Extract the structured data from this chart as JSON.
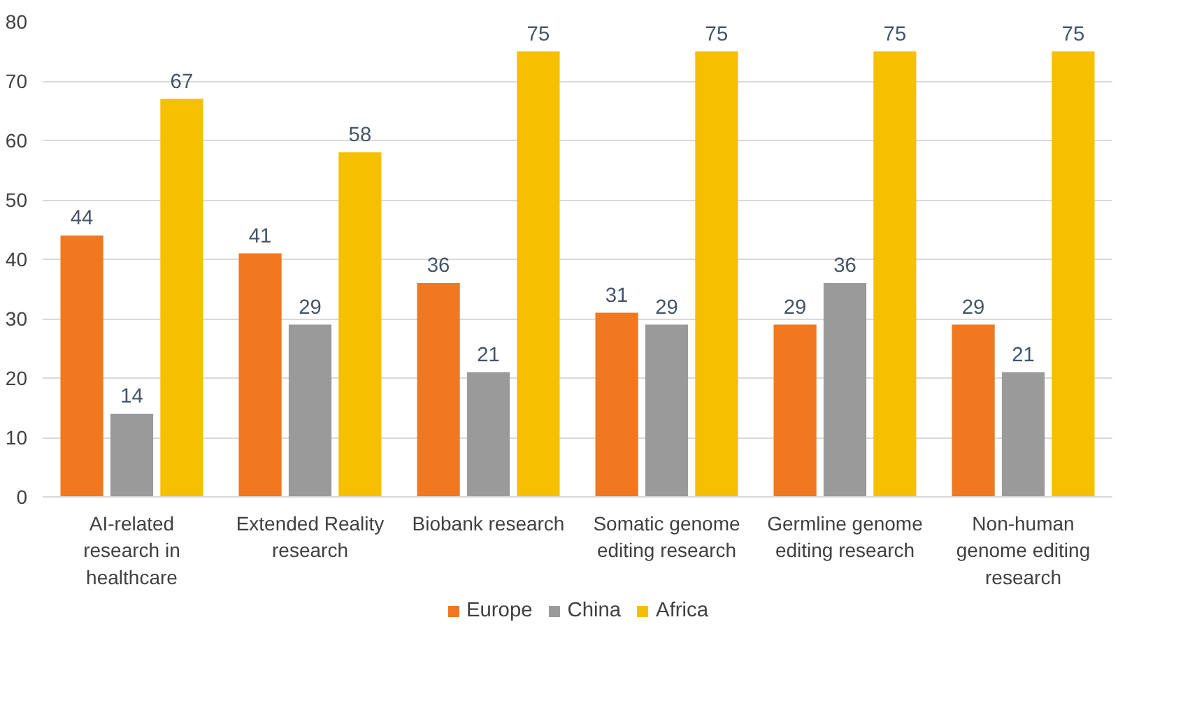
{
  "chart_data": {
    "type": "bar",
    "categories": [
      "AI-related\nresearch in\nhealthcare",
      "Extended Reality\nresearch",
      "Biobank research",
      "Somatic genome\nediting research",
      "Germline genome\nediting research",
      "Non-human\ngenome editing\nresearch"
    ],
    "series": [
      {
        "name": "Europe",
        "color": "#f07820",
        "values": [
          44,
          41,
          36,
          31,
          29,
          29
        ]
      },
      {
        "name": "China",
        "color": "#9a9a9a",
        "values": [
          14,
          29,
          21,
          29,
          36,
          21
        ]
      },
      {
        "name": "Africa",
        "color": "#f5c000",
        "values": [
          67,
          58,
          75,
          75,
          75,
          75
        ]
      }
    ],
    "ylim": [
      0,
      80
    ],
    "yticks": [
      0,
      10,
      20,
      30,
      40,
      50,
      60,
      70,
      80
    ],
    "grid": "y",
    "legend": "bottom",
    "data_labels": true
  }
}
